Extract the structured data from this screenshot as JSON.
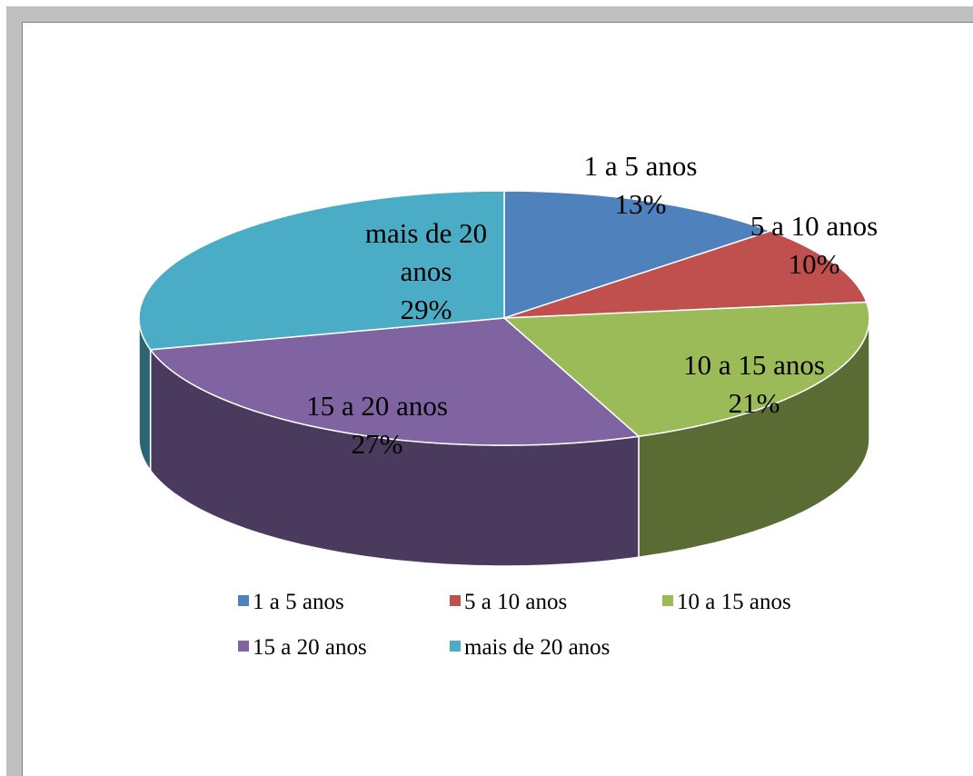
{
  "chart_data": {
    "type": "pie",
    "title": "",
    "style": "3d",
    "legend_position": "bottom",
    "slices": [
      {
        "name": "1 a 5 anos",
        "label_lines": [
          "1 a 5 anos"
        ],
        "value": 13,
        "percent_label": "13%",
        "color": "#4f81bd"
      },
      {
        "name": "5 a 10 anos",
        "label_lines": [
          "5 a 10 anos"
        ],
        "value": 10,
        "percent_label": "10%",
        "color": "#c0504d"
      },
      {
        "name": "10 a 15 anos",
        "label_lines": [
          "10 a 15 anos"
        ],
        "value": 21,
        "percent_label": "21%",
        "color": "#9bbb59"
      },
      {
        "name": "15 a 20 anos",
        "label_lines": [
          "15 a 20 anos"
        ],
        "value": 27,
        "percent_label": "27%",
        "color": "#8064a2"
      },
      {
        "name": "mais de 20 anos",
        "label_lines": [
          "mais de 20",
          "anos"
        ],
        "value": 29,
        "percent_label": "29%",
        "color": "#4bacc6"
      }
    ]
  }
}
